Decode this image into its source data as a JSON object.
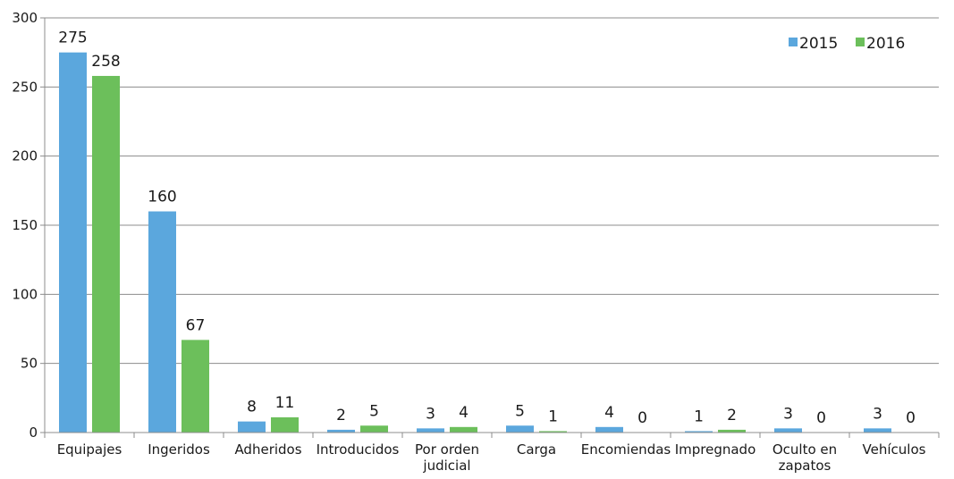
{
  "chart_data": {
    "type": "bar",
    "categories": [
      "Equipajes",
      "Ingeridos",
      "Adheridos",
      "Introducidos",
      "Por orden judicial",
      "Carga",
      "Encomiendas",
      "Impregnado",
      "Oculto en zapatos",
      "Vehículos"
    ],
    "category_lines": [
      [
        "Equipajes"
      ],
      [
        "Ingeridos"
      ],
      [
        "Adheridos"
      ],
      [
        "Introducidos"
      ],
      [
        "Por orden",
        "judicial"
      ],
      [
        "Carga"
      ],
      [
        "Encomiendas"
      ],
      [
        "Impregnado"
      ],
      [
        "Oculto en",
        "zapatos"
      ],
      [
        "Vehículos"
      ]
    ],
    "series": [
      {
        "name": "2015",
        "color": "#5ba7dd",
        "values": [
          275,
          160,
          8,
          2,
          3,
          5,
          4,
          1,
          3,
          3
        ]
      },
      {
        "name": "2016",
        "color": "#6cbf5b",
        "values": [
          258,
          67,
          11,
          5,
          4,
          1,
          0,
          2,
          0,
          0
        ]
      }
    ],
    "ylim": [
      0,
      300
    ],
    "yticks": [
      0,
      50,
      100,
      150,
      200,
      250,
      300
    ],
    "grid": true,
    "legend_position": "top-right",
    "data_labels": true
  }
}
